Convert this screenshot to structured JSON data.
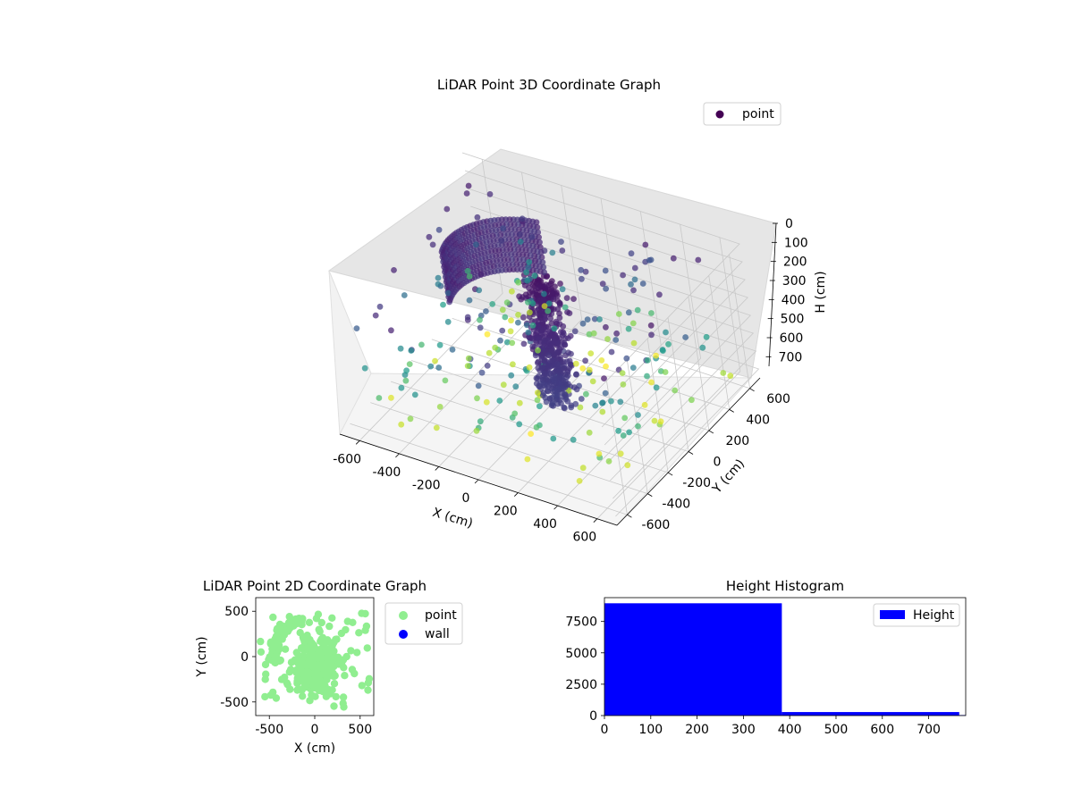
{
  "colors": {
    "viridis": [
      "#440154",
      "#482777",
      "#3f4a8a",
      "#31678e",
      "#26838f",
      "#1f9d8a",
      "#6cce5a",
      "#b6de2b",
      "#fee825"
    ],
    "point_2d": "#90ee90",
    "wall_2d": "#0000ff",
    "hist_bar": "#0000ff",
    "pane": "#f2f2f2",
    "grid": "#c8c8c8"
  },
  "chart_data": [
    {
      "type": "scatter",
      "subtype": "3d",
      "title": "LiDAR Point 3D Coordinate Graph",
      "xlabel": "X (cm)",
      "ylabel": "Y (cm)",
      "zlabel": "H (cm)",
      "xlim": [
        -700,
        700
      ],
      "ylim": [
        -700,
        700
      ],
      "zlim": [
        0,
        750
      ],
      "z_inverted": true,
      "x_ticks": [
        "-600",
        "-400",
        "-200",
        "0",
        "200",
        "400",
        "600"
      ],
      "y_ticks": [
        "-600",
        "-400",
        "-200",
        "0",
        "200",
        "400",
        "600"
      ],
      "z_ticks": [
        "0",
        "100",
        "200",
        "300",
        "400",
        "500",
        "600",
        "700"
      ],
      "legend": {
        "entries": [
          "point"
        ],
        "placement": "top-right"
      },
      "colormap": "viridis",
      "series": [
        {
          "name": "point",
          "groups": [
            {
              "label": "curved wall",
              "shape": "arc",
              "center": [
                -100,
                50
              ],
              "radius": 330,
              "angle_deg": [
                100,
                200
              ],
              "h_range": [
                0,
                280
              ],
              "color_level": 0.1
            },
            {
              "label": "dense column",
              "shape": "column",
              "center": [
                50,
                0
              ],
              "spread": 120,
              "h_range": [
                0,
                700
              ],
              "color_level": 0.05
            },
            {
              "label": "scattered points",
              "shape": "scatter",
              "x_range": [
                -650,
                650
              ],
              "y_range": [
                -650,
                650
              ],
              "h_range": [
                50,
                750
              ],
              "color_by": "height"
            }
          ]
        }
      ]
    },
    {
      "type": "scatter",
      "title": "LiDAR Point 2D Coordinate Graph",
      "xlabel": "X (cm)",
      "ylabel": "Y (cm)",
      "xlim": [
        -650,
        650
      ],
      "ylim": [
        -650,
        650
      ],
      "x_ticks": [
        "-500",
        "0",
        "500"
      ],
      "y_ticks": [
        "-500",
        "0",
        "500"
      ],
      "legend": {
        "entries": [
          "point",
          "wall"
        ],
        "placement": "outside-right"
      },
      "series": [
        {
          "name": "point",
          "groups": [
            {
              "label": "arc",
              "shape": "arc",
              "center": [
                -100,
                50
              ],
              "radius": 350,
              "angle_deg": [
                95,
                200
              ]
            },
            {
              "label": "central blob",
              "shape": "cluster",
              "center": [
                0,
                -100
              ],
              "spread": 280
            },
            {
              "label": "outer scatter",
              "shape": "scatter",
              "x_range": [
                -600,
                620
              ],
              "y_range": [
                -600,
                580
              ]
            }
          ]
        },
        {
          "name": "wall",
          "groups": []
        }
      ]
    },
    {
      "type": "bar",
      "subtype": "histogram",
      "title": "Height Histogram",
      "xlabel": "",
      "ylabel": "",
      "xlim": [
        0,
        780
      ],
      "ylim": [
        0,
        9400
      ],
      "x_ticks": [
        "0",
        "100",
        "200",
        "300",
        "400",
        "500",
        "600",
        "700"
      ],
      "y_ticks": [
        "0",
        "2500",
        "5000",
        "7500"
      ],
      "legend": {
        "entries": [
          "Height"
        ],
        "placement": "top-right"
      },
      "bins": [
        [
          0,
          383
        ],
        [
          383,
          766
        ],
        [
          766,
          780
        ]
      ],
      "values": [
        8950,
        280,
        40
      ]
    }
  ]
}
